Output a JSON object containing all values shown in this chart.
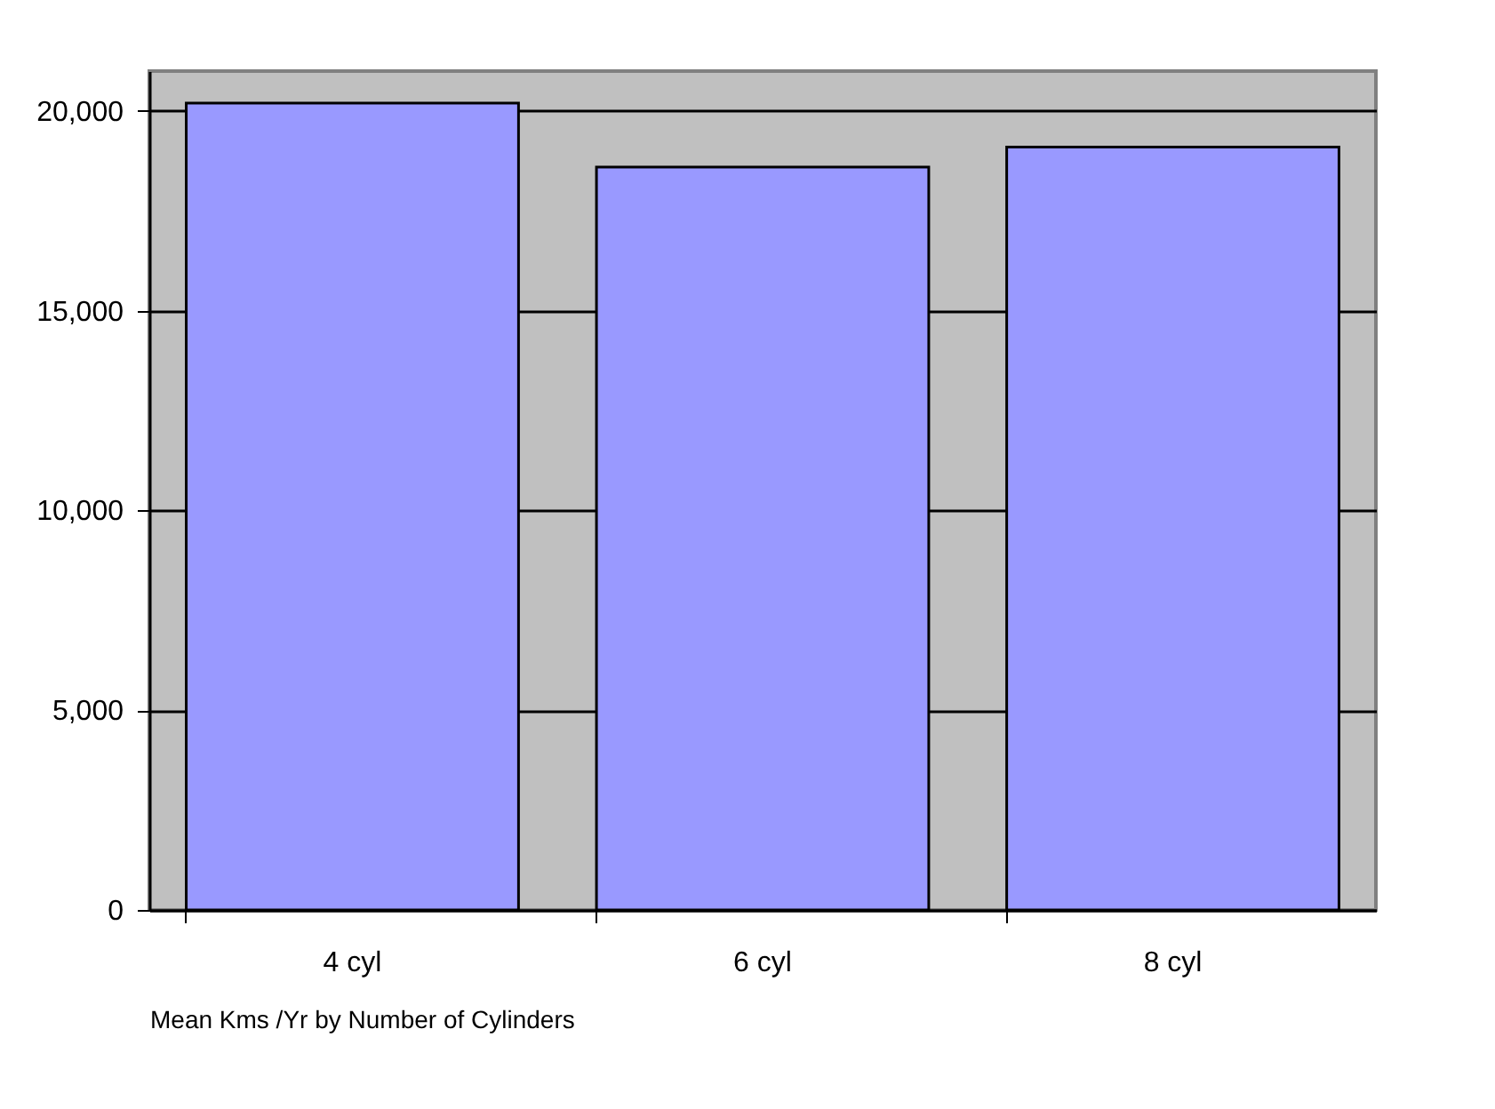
{
  "chart_data": {
    "type": "bar",
    "xlabel": "Mean Kms /Yr by Number of Cylinders",
    "categories": [
      "4 cyl",
      "6 cyl",
      "8 cyl"
    ],
    "values": [
      20200,
      18600,
      19100
    ],
    "color": "#9999ff",
    "ylim": [
      0,
      21000
    ],
    "yticks": [
      {
        "value": 0,
        "label": "0"
      },
      {
        "value": 5000,
        "label": "5,000"
      },
      {
        "value": 10000,
        "label": "10,000"
      },
      {
        "value": 15000,
        "label": "15,000"
      },
      {
        "value": 20000,
        "label": "20,000"
      }
    ],
    "grid": "y"
  }
}
